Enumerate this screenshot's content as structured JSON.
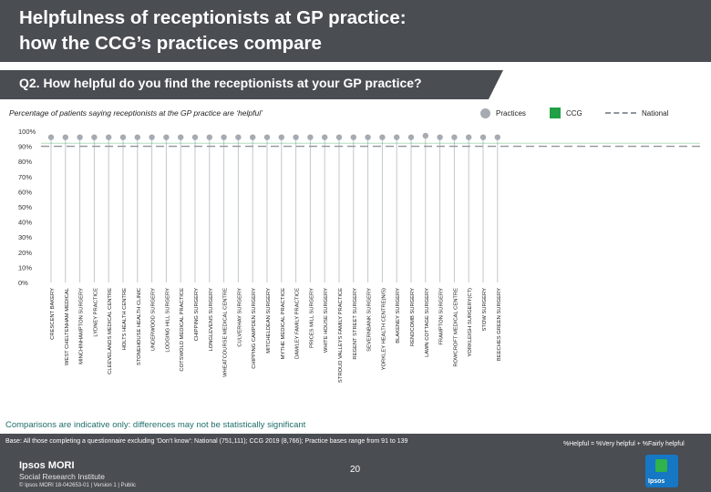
{
  "header": {
    "title_line1": "Helpfulness of receptionists at GP practice:",
    "title_line2": "how the CCG’s practices compare",
    "question": "Q2. How helpful do you find the receptionists at your GP practice?"
  },
  "subtitle": "Percentage of patients saying receptionists at the GP practice are ‘helpful’",
  "legend": {
    "practices": "Practices",
    "ccg": "CCG",
    "national": "National"
  },
  "colors": {
    "header_bg": "#4a4d52",
    "practice_dot": "#a6abb2",
    "ccg_bar": "#21a045",
    "national_line": "#8f959c",
    "note_text": "#1f6e6a"
  },
  "chart_data": {
    "type": "scatter",
    "title": "Percentage of patients saying receptionists at the GP practice are ‘helpful’",
    "xlabel": "",
    "ylabel": "",
    "ylim": [
      0,
      100
    ],
    "y_ticks": [
      "0%",
      "10%",
      "20%",
      "30%",
      "40%",
      "50%",
      "60%",
      "70%",
      "80%",
      "90%",
      "100%"
    ],
    "grid": false,
    "categories": [
      "CRESCENT BAKERY",
      "WEST CHELTENHAM MEDICAL",
      "MINCHINHAMPTON SURGERY",
      "LYDNEY PRACTICE",
      "CLEEVELANDS MEDICAL CENTRE",
      "HOLTS HEALTH CENTRE",
      "STONEHOUSE HEALTH CLINIC",
      "UNDERWOOD SURGERY",
      "LODGING HILL SURGERY",
      "COTSWOLD MEDICAL PRACTICE",
      "CHIPPING SURGERY",
      "LONGLEVENS SURGERY",
      "WHEATCOURSE MEDICAL CENTRE",
      "CULVERHAY SURGERY",
      "CHIPPING CAMPDEN SURGERY",
      "MITCHELDEAN SURGERY",
      "MYTHE MEDICAL PRACTICE",
      "DAM/LEY FAMILY PRACTICE",
      "PRICES MILL SURGERY",
      "WHITE HOUSE SURGERY",
      "STROUD VALLEYS FAMILY PRACTICE",
      "REGENT STREET SURGERY",
      "SEVERNBANK SURGERY",
      "YORKLEY HEALTH CENTRE(N/S)",
      "BLAKENEY SURGERY",
      "RENDCOMB SURGERY",
      "LAWN COTTAGE SURGERY",
      "FRAMPTON SURGERY",
      "ROWCROFT MEDICAL CENTRE",
      "YORKLEIGH SURGERY(CT)",
      "STOW SURGERY",
      "BEECHES GREEN SURGERY"
    ],
    "series": [
      {
        "name": "Practices",
        "values": [
          96,
          96,
          96,
          96,
          96,
          96,
          96,
          96,
          96,
          96,
          96,
          96,
          96,
          96,
          96,
          96,
          96,
          96,
          96,
          96,
          96,
          96,
          96,
          96,
          96,
          96,
          97,
          96,
          96,
          96,
          96,
          96
        ]
      },
      {
        "name": "CCG",
        "values": [
          92
        ]
      },
      {
        "name": "National",
        "values": [
          90
        ]
      }
    ]
  },
  "notes": {
    "comparison": "Comparisons are indicative only: differences may not be statistically significant",
    "base": "Base: All those completing a questionnaire excluding ‘Don’t know’: National (751,111); CCG 2019 (8,766); Practice bases range from 91 to 139",
    "helpful_def": "%Helpful = %Very helpful + %Fairly helpful"
  },
  "footer": {
    "logo_line1": "Ipsos MORI",
    "logo_line2": "Social Research Institute",
    "copyright": "© Ipsos MORI     18-042653-01 | Version 1 | Public",
    "page": "20",
    "brand": "Ipsos"
  }
}
